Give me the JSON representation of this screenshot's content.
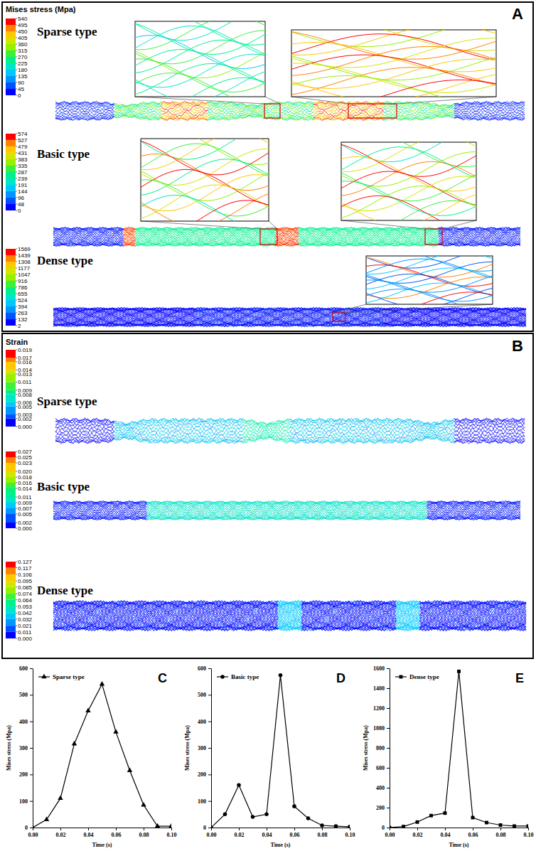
{
  "chart_data": [
    {
      "type": "contour",
      "label": "A",
      "colorbar_title": "Mises stress (Mpa)",
      "panels": [
        {
          "title": "Sparse type",
          "colorbar_range": [
            0,
            540
          ],
          "colorbar_ticks": [
            0,
            45,
            90,
            135,
            180,
            225,
            270,
            315,
            360,
            405,
            450,
            495,
            540
          ]
        },
        {
          "title": "Basic type",
          "colorbar_range": [
            0,
            574
          ],
          "colorbar_ticks": [
            0,
            48,
            96,
            144,
            191,
            239,
            287,
            335,
            383,
            431,
            479,
            527,
            574
          ]
        },
        {
          "title": "Dense type",
          "colorbar_range": [
            2,
            1569
          ],
          "colorbar_ticks": [
            2,
            132,
            263,
            394,
            524,
            655,
            786,
            916,
            1047,
            1177,
            1308,
            1439,
            1569
          ]
        }
      ]
    },
    {
      "type": "contour",
      "label": "B",
      "colorbar_title": "Strain",
      "panels": [
        {
          "title": "Sparse type",
          "colorbar_range": [
            0,
            0.019
          ],
          "colorbar_ticks": [
            {
              "value": 0,
              "label": "0.000"
            },
            0.002,
            0.003,
            0.005,
            0.006,
            0.008,
            0.009,
            0.011,
            0.013,
            0.014,
            0.016,
            0.017,
            0.019
          ]
        },
        {
          "title": "Basic type",
          "colorbar_range": [
            0,
            0.027
          ],
          "colorbar_ticks": [
            {
              "value": 0,
              "label": "0.000"
            },
            0.002,
            0.005,
            0.007,
            0.009,
            0.011,
            0.014,
            0.016,
            0.018,
            {
              "value": 0.02,
              "label": "0.020"
            },
            0.023,
            0.025,
            0.027
          ]
        },
        {
          "title": "Dense type",
          "colorbar_range": [
            0,
            0.127
          ],
          "colorbar_ticks": [
            {
              "value": 0,
              "label": "0.000"
            },
            0.011,
            0.021,
            0.032,
            0.042,
            0.053,
            0.064,
            0.074,
            0.085,
            0.095,
            0.106,
            0.117,
            0.127
          ]
        }
      ]
    },
    {
      "type": "line",
      "label": "C",
      "xlabel": "Time (s)",
      "ylabel": "Mises stress (Mpa)",
      "legend": "upper left",
      "x": [
        0,
        0.01,
        0.02,
        0.03,
        0.04,
        0.05,
        0.06,
        0.07,
        0.08,
        0.09,
        0.1
      ],
      "xlim": [
        0,
        0.1
      ],
      "xticks": [
        {
          "value": 0,
          "label": "0.00"
        },
        0.02,
        0.04,
        0.06,
        0.08,
        {
          "value": 0.1,
          "label": "0.10"
        }
      ],
      "ylim": [
        0,
        600
      ],
      "yticks": [
        0,
        100,
        200,
        300,
        400,
        500,
        600
      ],
      "series": [
        {
          "name": "Sparse type",
          "color": "#000000",
          "marker": "triangle",
          "values": [
            0,
            30,
            110,
            315,
            440,
            540,
            360,
            215,
            85,
            5,
            5
          ]
        }
      ]
    },
    {
      "type": "line",
      "label": "D",
      "xlabel": "Time (s)",
      "ylabel": "Mises stress (Mpa)",
      "legend": "upper left",
      "x": [
        0,
        0.01,
        0.02,
        0.03,
        0.04,
        0.05,
        0.06,
        0.07,
        0.08,
        0.09,
        0.1
      ],
      "xlim": [
        0,
        0.1
      ],
      "xticks": [
        {
          "value": 0,
          "label": "0.00"
        },
        0.02,
        0.04,
        0.06,
        0.08,
        {
          "value": 0.1,
          "label": "0.10"
        }
      ],
      "ylim": [
        0,
        600
      ],
      "yticks": [
        0,
        100,
        200,
        300,
        400,
        500,
        600
      ],
      "series": [
        {
          "name": "Basic type",
          "color": "#000000",
          "marker": "circle",
          "values": [
            0,
            50,
            160,
            40,
            50,
            574,
            80,
            35,
            8,
            5,
            3
          ]
        }
      ]
    },
    {
      "type": "line",
      "label": "E",
      "xlabel": "Time (s)",
      "ylabel": "Mises stress (Mpa)",
      "legend": "upper left",
      "x": [
        0,
        0.01,
        0.02,
        0.03,
        0.04,
        0.05,
        0.06,
        0.07,
        0.08,
        0.09,
        0.1
      ],
      "xlim": [
        0,
        0.1
      ],
      "xticks": [
        {
          "value": 0,
          "label": "0.00"
        },
        0.02,
        0.04,
        0.06,
        0.08,
        {
          "value": 0.1,
          "label": "0.10"
        }
      ],
      "ylim": [
        0,
        1600
      ],
      "yticks": [
        0,
        200,
        400,
        600,
        800,
        1000,
        1200,
        1400,
        1600
      ],
      "series": [
        {
          "name": "Dense type",
          "color": "#000000",
          "marker": "square",
          "values": [
            0,
            10,
            55,
            120,
            145,
            1569,
            100,
            50,
            25,
            15,
            15
          ]
        }
      ]
    }
  ]
}
